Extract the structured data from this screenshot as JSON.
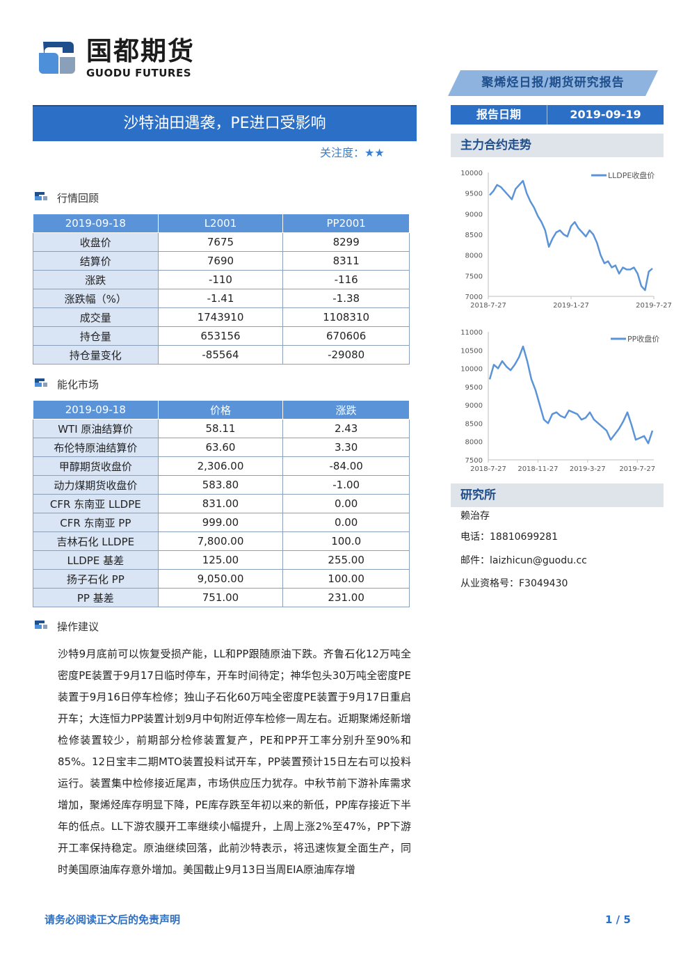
{
  "header": {
    "logo_cn": "国都期货",
    "logo_en": "GUODU FUTURES",
    "report_type": "聚烯烃日报/期货研究报告",
    "date_label": "报告日期",
    "date_value": "2019-09-19"
  },
  "title": "沙特油田遇袭，PE进口受影响",
  "attention": "关注度：★★",
  "market_review": {
    "heading": "行情回顾",
    "columns": [
      "2019-09-18",
      "L2001",
      "PP2001"
    ],
    "rows": [
      [
        "收盘价",
        "7675",
        "8299"
      ],
      [
        "结算价",
        "7690",
        "8311"
      ],
      [
        "涨跌",
        "-110",
        "-116"
      ],
      [
        "涨跌幅（%）",
        "-1.41",
        "-1.38"
      ],
      [
        "成交量",
        "1743910",
        "1108310"
      ],
      [
        "持仓量",
        "653156",
        "670606"
      ],
      [
        "持仓量变化",
        "-85564",
        "-29080"
      ]
    ]
  },
  "energy_market": {
    "heading": "能化市场",
    "columns": [
      "2019-09-18",
      "价格",
      "涨跌"
    ],
    "rows": [
      [
        "WTI 原油结算价",
        "58.11",
        "2.43"
      ],
      [
        "布伦特原油结算价",
        "63.60",
        "3.30"
      ],
      [
        "甲醇期货收盘价",
        "2,306.00",
        "-84.00"
      ],
      [
        "动力煤期货收盘价",
        "583.80",
        "-1.00"
      ],
      [
        "CFR 东南亚 LLDPE",
        "831.00",
        "0.00"
      ],
      [
        "CFR 东南亚 PP",
        "999.00",
        "0.00"
      ],
      [
        "吉林石化 LLDPE",
        "7,800.00",
        "100.0"
      ],
      [
        "LLDPE 基差",
        "125.00",
        "255.00"
      ],
      [
        "扬子石化 PP",
        "9,050.00",
        "100.00"
      ],
      [
        "PP 基差",
        "751.00",
        "231.00"
      ]
    ]
  },
  "advice": {
    "heading": "操作建议",
    "text": "沙特9月底前可以恢复受损产能，LL和PP跟随原油下跌。齐鲁石化12万吨全密度PE装置于9月17日临时停车，开车时间待定；神华包头30万吨全密度PE装置于9月16日停车检修；独山子石化60万吨全密度PE装置于9月17日重启开车；大连恒力PP装置计划9月中旬附近停车检修一周左右。近期聚烯烃新增检修装置较少，前期部分检修装置复产，PE和PP开工率分别升至90%和85%。12日宝丰二期MTO装置投料试开车，PP装置预计15日左右可以投料运行。装置集中检修接近尾声，市场供应压力犹存。中秋节前下游补库需求增加，聚烯烃库存明显下降，PE库存跌至年初以来的新低，PP库存接近下半年的低点。LL下游农膜开工率继续小幅提升，上周上涨2%至47%，PP下游开工率保持稳定。原油继续回落，此前沙特表示，将迅速恢复全面生产，同时美国原油库存意外增加。美国截止9月13日当周EIA原油库存增"
  },
  "sidebar": {
    "trend_heading": "主力合约走势",
    "research_heading": "研究所",
    "analyst": "赖治存",
    "phone": "电话：18810699281",
    "email": "邮件：laizhicun@guodu.cc",
    "license": "从业资格号：F3049430"
  },
  "footer": {
    "disclaimer": "请务必阅读正文后的免责声明",
    "page": "1 / 5"
  },
  "colors": {
    "brand_blue": "#2c6fc6",
    "header_light": "#8db3de",
    "line_blue": "#5b93d8"
  },
  "chart_data": [
    {
      "type": "line",
      "series": [
        {
          "name": "LLDPE收盘价",
          "values": [
            9450,
            9550,
            9700,
            9650,
            9550,
            9450,
            9350,
            9600,
            9700,
            9800,
            9500,
            9300,
            9150,
            8950,
            8800,
            8600,
            8200,
            8400,
            8550,
            8600,
            8500,
            8450,
            8700,
            8800,
            8650,
            8550,
            8450,
            8600,
            8500,
            8300,
            8000,
            7800,
            7850,
            7700,
            7750,
            7550,
            7700,
            7650,
            7650,
            7700,
            7550,
            7250,
            7150,
            7600,
            7675
          ]
        }
      ],
      "x_tick_labels": [
        "2018-7-27",
        "2019-1-27",
        "2019-7-27"
      ],
      "y_ticks": [
        7000,
        7500,
        8000,
        8500,
        9000,
        9500,
        10000
      ],
      "ylim": [
        7000,
        10000
      ],
      "legend": "top-right"
    },
    {
      "type": "line",
      "series": [
        {
          "name": "PP收盘价",
          "values": [
            9700,
            10100,
            10000,
            10200,
            10050,
            9950,
            10100,
            10300,
            10600,
            10200,
            9700,
            9400,
            9000,
            8600,
            8500,
            8750,
            8800,
            8700,
            8650,
            8850,
            8800,
            8750,
            8600,
            8650,
            8800,
            8600,
            8500,
            8400,
            8300,
            8050,
            8200,
            8350,
            8550,
            8800,
            8450,
            8050,
            8100,
            8150,
            7950,
            8299
          ]
        }
      ],
      "x_tick_labels": [
        "2018-7-27",
        "2018-11-27",
        "2019-3-27",
        "2019-7-27"
      ],
      "y_ticks": [
        7500,
        8000,
        8500,
        9000,
        9500,
        10000,
        10500,
        11000
      ],
      "ylim": [
        7500,
        11000
      ],
      "legend": "top-right"
    }
  ]
}
